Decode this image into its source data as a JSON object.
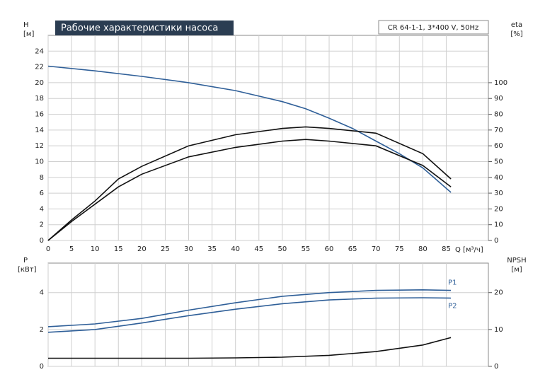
{
  "chart_data": [
    {
      "type": "line",
      "title": "Рабочие характеристики насоса",
      "annotation": "CR 64-1-1, 3*400 V, 50Hz",
      "ylabel": "H",
      "yunit": "[м]",
      "y2label": "eta",
      "y2unit": "[%]",
      "xlabel": "Q [м³/ч]",
      "xlim": [
        0,
        94
      ],
      "xticks": [
        0,
        5,
        10,
        15,
        20,
        25,
        30,
        35,
        40,
        45,
        50,
        55,
        60,
        65,
        70,
        75,
        80,
        85
      ],
      "ylim": [
        0,
        26
      ],
      "yticks": [
        0,
        2,
        4,
        6,
        8,
        10,
        12,
        14,
        16,
        18,
        20,
        22,
        24
      ],
      "y2lim": [
        0,
        130
      ],
      "y2ticks": [
        0,
        10,
        20,
        30,
        40,
        50,
        60,
        70,
        80,
        90,
        100
      ],
      "grid": true,
      "series": [
        {
          "color": "#2f5f98",
          "x": [
            0,
            10,
            20,
            30,
            40,
            50,
            55,
            60,
            65,
            70,
            75,
            80,
            86
          ],
          "values": [
            22.1,
            21.5,
            20.8,
            20,
            19,
            17.6,
            16.7,
            15.5,
            14.2,
            12.6,
            11,
            9.2,
            6.1
          ]
        },
        {
          "color": "#111111",
          "axis": "y2",
          "x": [
            0,
            5,
            10,
            15,
            20,
            30,
            40,
            50,
            55,
            60,
            70,
            80,
            86
          ],
          "values": [
            0,
            13,
            25,
            39,
            47,
            60,
            67,
            71,
            72,
            71,
            68,
            55,
            39
          ]
        },
        {
          "color": "#111111",
          "axis": "y2",
          "x": [
            0,
            5,
            10,
            15,
            20,
            30,
            40,
            50,
            55,
            60,
            70,
            80,
            86
          ],
          "values": [
            0,
            12,
            23,
            34,
            42,
            53,
            59,
            63,
            64,
            63,
            60,
            47.5,
            34
          ]
        }
      ]
    },
    {
      "type": "line",
      "ylabel": "P",
      "yunit": "[кВт]",
      "y2label": "NPSH",
      "y2unit": "[м]",
      "xlim": [
        0,
        94
      ],
      "ylim": [
        0,
        5.6
      ],
      "yticks": [
        0,
        2,
        4
      ],
      "y2lim": [
        0,
        28
      ],
      "y2ticks": [
        0,
        10,
        20
      ],
      "grid": true,
      "series": [
        {
          "name": "P1",
          "color": "#2f5f98",
          "x": [
            0,
            10,
            20,
            30,
            40,
            50,
            60,
            70,
            80,
            86
          ],
          "values": [
            2.15,
            2.3,
            2.6,
            3.05,
            3.45,
            3.8,
            4.0,
            4.12,
            4.15,
            4.12
          ]
        },
        {
          "name": "P2",
          "color": "#2f5f98",
          "x": [
            0,
            10,
            20,
            30,
            40,
            50,
            60,
            70,
            80,
            86
          ],
          "values": [
            1.85,
            2.0,
            2.35,
            2.75,
            3.1,
            3.4,
            3.6,
            3.7,
            3.72,
            3.7
          ]
        },
        {
          "color": "#111111",
          "axis": "y2",
          "x": [
            0,
            30,
            40,
            50,
            60,
            70,
            80,
            86
          ],
          "values": [
            2.2,
            2.2,
            2.3,
            2.5,
            3,
            4,
            5.8,
            7.8
          ]
        }
      ]
    }
  ]
}
